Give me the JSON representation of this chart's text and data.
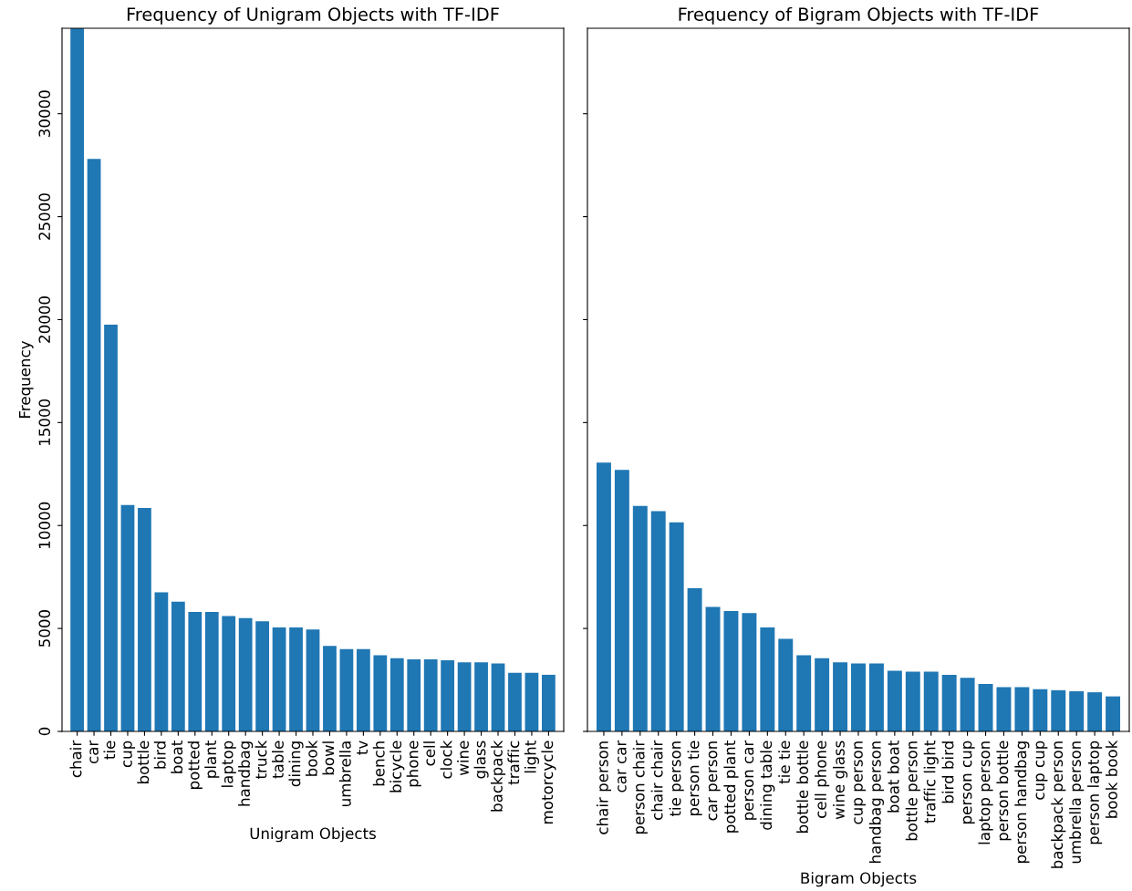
{
  "chart_data": [
    {
      "type": "bar",
      "title": "Frequency of Unigram Objects with TF-IDF",
      "xlabel": "Unigram Objects",
      "ylabel": "Frequency",
      "categories": [
        "chair",
        "car",
        "tie",
        "cup",
        "bottle",
        "bird",
        "boat",
        "potted",
        "plant",
        "laptop",
        "handbag",
        "truck",
        "table",
        "dining",
        "book",
        "bowl",
        "umbrella",
        "tv",
        "bench",
        "bicycle",
        "phone",
        "cell",
        "clock",
        "wine",
        "glass",
        "backpack",
        "traffic",
        "light",
        "motorcycle"
      ],
      "values": [
        34150,
        27800,
        19750,
        11000,
        10850,
        6750,
        6300,
        5800,
        5800,
        5600,
        5500,
        5350,
        5050,
        5050,
        4950,
        4150,
        4000,
        4000,
        3700,
        3550,
        3500,
        3500,
        3450,
        3350,
        3350,
        3300,
        2850,
        2850,
        2750
      ],
      "color": "#1f77b4",
      "ylim": [
        0,
        34150
      ],
      "yticks": [
        0,
        5000,
        10000,
        15000,
        20000,
        25000,
        30000
      ],
      "grid": false
    },
    {
      "type": "bar",
      "title": "Frequency of Bigram Objects with TF-IDF",
      "xlabel": "Bigram Objects",
      "categories": [
        "chair person",
        "car car",
        "person chair",
        "chair chair",
        "tie person",
        "person tie",
        "car person",
        "potted plant",
        "person car",
        "dining table",
        "tie tie",
        "bottle bottle",
        "cell phone",
        "wine glass",
        "cup person",
        "handbag person",
        "boat boat",
        "bottle person",
        "traffic light",
        "bird bird",
        "person cup",
        "laptop person",
        "person bottle",
        "person handbag",
        "cup cup",
        "backpack person",
        "umbrella person",
        "person laptop",
        "book book"
      ],
      "values": [
        13050,
        12700,
        10950,
        10700,
        10150,
        6950,
        6050,
        5850,
        5750,
        5050,
        4500,
        3700,
        3550,
        3350,
        3300,
        3300,
        2950,
        2900,
        2900,
        2750,
        2600,
        2300,
        2150,
        2150,
        2050,
        2000,
        1950,
        1900,
        1700
      ],
      "color": "#1f77b4",
      "ylim": [
        0,
        34150
      ],
      "yticks": [
        0,
        5000,
        10000,
        15000,
        20000,
        25000,
        30000
      ],
      "grid": false,
      "tick_labels": "x"
    }
  ]
}
